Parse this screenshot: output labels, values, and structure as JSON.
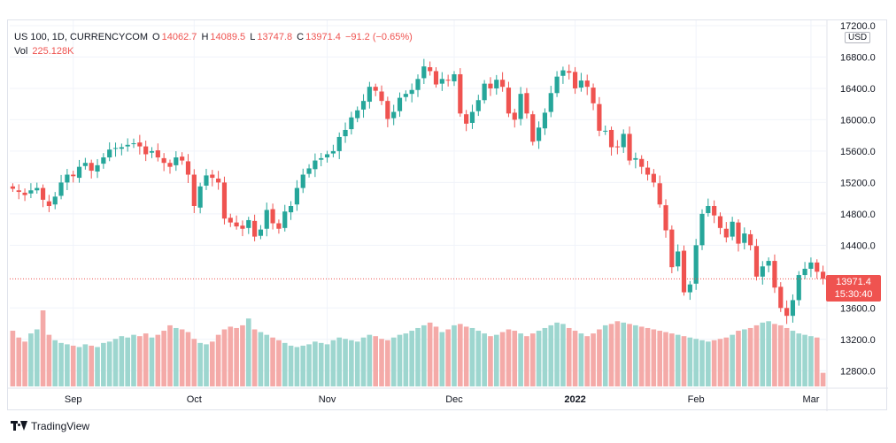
{
  "legend": {
    "symbol": "US 100, 1D, CURRENCYCOM",
    "o_label": "O",
    "o_value": "14062.7",
    "h_label": "H",
    "h_value": "14089.5",
    "l_label": "L",
    "l_value": "13747.8",
    "c_label": "C",
    "c_value": "13971.4",
    "change": "−91.2 (−0.65%)",
    "vol_label": "Vol",
    "vol_value": "225.128K"
  },
  "price_axis": {
    "currency": "USD",
    "tick_labels": [
      "17200.0",
      "16800.0",
      "16400.0",
      "16000.0",
      "15600.0",
      "15200.0",
      "14800.0",
      "14400.0",
      "13600.0",
      "13200.0",
      "12800.0"
    ]
  },
  "last_price": {
    "price": "13971.4",
    "countdown": "15:30:40"
  },
  "time_axis": {
    "labels": [
      "Sep",
      "Oct",
      "Nov",
      "Dec",
      "2022",
      "Feb",
      "Mar"
    ]
  },
  "footer": {
    "brand": "TradingView"
  },
  "colors": {
    "up": "#26a69a",
    "down": "#ef5350",
    "vol_up": "#9dd6cf",
    "vol_down": "#f4aaa8",
    "grid": "#f0f3fa"
  },
  "chart_data": {
    "type": "candlestick",
    "title": "US 100, 1D, CURRENCYCOM",
    "ylim": [
      12600,
      17200
    ],
    "y_ticks": [
      12800,
      13200,
      13600,
      14400,
      14800,
      15200,
      15600,
      16000,
      16400,
      16800,
      17200
    ],
    "x_ticks": [
      {
        "label": "Sep",
        "index": 10
      },
      {
        "label": "Oct",
        "index": 30
      },
      {
        "label": "Nov",
        "index": 52
      },
      {
        "label": "Dec",
        "index": 73
      },
      {
        "label": "2022",
        "index": 93
      },
      {
        "label": "Feb",
        "index": 113
      },
      {
        "label": "Mar",
        "index": 132
      }
    ],
    "closes": [
      15120,
      15080,
      15040,
      15100,
      15130,
      14980,
      14900,
      15020,
      15200,
      15300,
      15280,
      15400,
      15450,
      15350,
      15420,
      15520,
      15620,
      15640,
      15650,
      15680,
      15700,
      15660,
      15560,
      15600,
      15520,
      15450,
      15400,
      15520,
      15480,
      15300,
      14900,
      15150,
      15290,
      15260,
      15200,
      14740,
      14690,
      14640,
      14610,
      14720,
      14510,
      14600,
      14850,
      14680,
      14610,
      14830,
      14900,
      15130,
      15300,
      15380,
      15480,
      15510,
      15560,
      15600,
      15780,
      15870,
      16030,
      16120,
      16240,
      16420,
      16370,
      16240,
      16010,
      16100,
      16280,
      16330,
      16380,
      16520,
      16680,
      16620,
      16450,
      16520,
      16500,
      16580,
      16080,
      15950,
      16100,
      16250,
      16460,
      16400,
      16510,
      16420,
      16080,
      16000,
      16330,
      16080,
      15720,
      15900,
      16090,
      16340,
      16550,
      16630,
      16600,
      16400,
      16500,
      16420,
      16210,
      15860,
      15860,
      15650,
      15650,
      15820,
      15480,
      15510,
      15400,
      15300,
      15200,
      14920,
      14590,
      14120,
      14320,
      13800,
      13900,
      14400,
      14800,
      14900,
      14780,
      14620,
      14500,
      14700,
      14420,
      14550,
      14400,
      14000,
      14130,
      14200,
      13860,
      13600,
      13500,
      13700,
      14020,
      14100,
      14180,
      14062,
      13971
    ],
    "opens": [
      15150,
      15100,
      15070,
      15060,
      15100,
      15130,
      14960,
      14920,
      15030,
      15200,
      15300,
      15260,
      15410,
      15450,
      15340,
      15440,
      15520,
      15630,
      15630,
      15660,
      15690,
      15710,
      15660,
      15580,
      15610,
      15510,
      15450,
      15420,
      15530,
      15470,
      15300,
      14880,
      15160,
      15300,
      15250,
      15200,
      14750,
      14690,
      14650,
      14620,
      14710,
      14520,
      14610,
      14860,
      14680,
      14620,
      14820,
      14920,
      15130,
      15310,
      15370,
      15490,
      15520,
      15570,
      15600,
      15790,
      15880,
      16020,
      16130,
      16230,
      16420,
      16360,
      16240,
      16020,
      16110,
      16290,
      16330,
      16380,
      16530,
      16670,
      16620,
      16460,
      16510,
      16490,
      16580,
      16070,
      15960,
      16110,
      16250,
      16460,
      16400,
      16510,
      16410,
      16090,
      16010,
      16340,
      16070,
      15730,
      15890,
      16100,
      16340,
      16560,
      16620,
      16610,
      16410,
      16500,
      16410,
      16200,
      15860,
      15870,
      15660,
      15650,
      15820,
      15490,
      15500,
      15390,
      15310,
      15190,
      14910,
      14600,
      14130,
      14330,
      13800,
      13910,
      14400,
      14810,
      14900,
      14770,
      14610,
      14510,
      14690,
      14430,
      14540,
      14390,
      14000,
      14140,
      14200,
      13870,
      13600,
      13500,
      13700,
      14020,
      14100,
      14180,
      14062
    ],
    "volumes": [
      410,
      360,
      330,
      390,
      420,
      560,
      380,
      340,
      320,
      310,
      300,
      290,
      310,
      300,
      290,
      320,
      330,
      350,
      370,
      360,
      380,
      370,
      390,
      360,
      380,
      410,
      450,
      430,
      420,
      400,
      350,
      320,
      310,
      330,
      380,
      420,
      440,
      430,
      450,
      500,
      420,
      400,
      380,
      360,
      340,
      320,
      300,
      290,
      300,
      310,
      330,
      320,
      310,
      340,
      360,
      350,
      340,
      330,
      360,
      380,
      370,
      350,
      340,
      360,
      380,
      390,
      410,
      430,
      450,
      470,
      440,
      400,
      420,
      450,
      460,
      440,
      430,
      410,
      390,
      370,
      380,
      400,
      420,
      410,
      390,
      370,
      390,
      410,
      430,
      450,
      470,
      460,
      430,
      410,
      390,
      370,
      390,
      420,
      450,
      460,
      480,
      470,
      460,
      450,
      440,
      430,
      420,
      410,
      400,
      390,
      380,
      370,
      360,
      350,
      340,
      330,
      340,
      350,
      360,
      380,
      410,
      420,
      430,
      450,
      470,
      480,
      460,
      450,
      430,
      410,
      390,
      380,
      370,
      360,
      100
    ]
  }
}
